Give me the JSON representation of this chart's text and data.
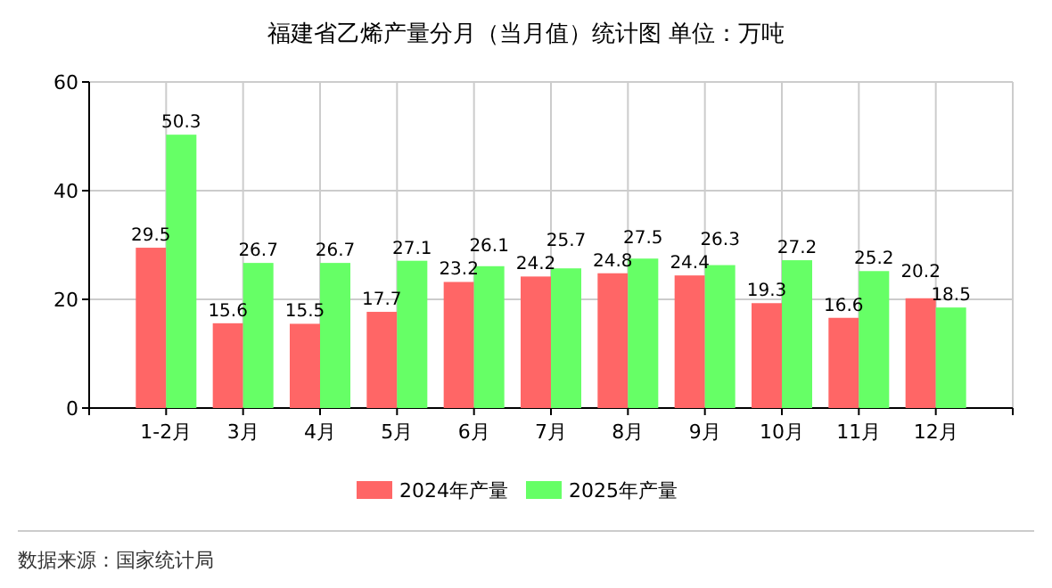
{
  "chart_data": {
    "type": "bar",
    "title": "福建省乙烯产量分月（当月值）统计图 单位：万吨",
    "categories": [
      "1-2月",
      "3月",
      "4月",
      "5月",
      "6月",
      "7月",
      "8月",
      "9月",
      "10月",
      "11月",
      "12月"
    ],
    "series": [
      {
        "name": "2024年产量",
        "color": "#ff6666",
        "values": [
          29.5,
          15.6,
          15.5,
          17.7,
          23.2,
          24.2,
          24.8,
          24.4,
          19.3,
          16.6,
          20.2
        ]
      },
      {
        "name": "2025年产量",
        "color": "#66ff66",
        "values": [
          50.3,
          26.7,
          26.7,
          27.1,
          26.1,
          25.7,
          27.5,
          26.3,
          27.2,
          25.2,
          18.5
        ]
      }
    ],
    "ylim": [
      0,
      60
    ],
    "yticks": [
      0,
      20,
      40,
      60
    ],
    "grid": true,
    "legend": "bottom",
    "data_labels": true,
    "annotations": [
      "数据来源：国家统计局"
    ]
  }
}
